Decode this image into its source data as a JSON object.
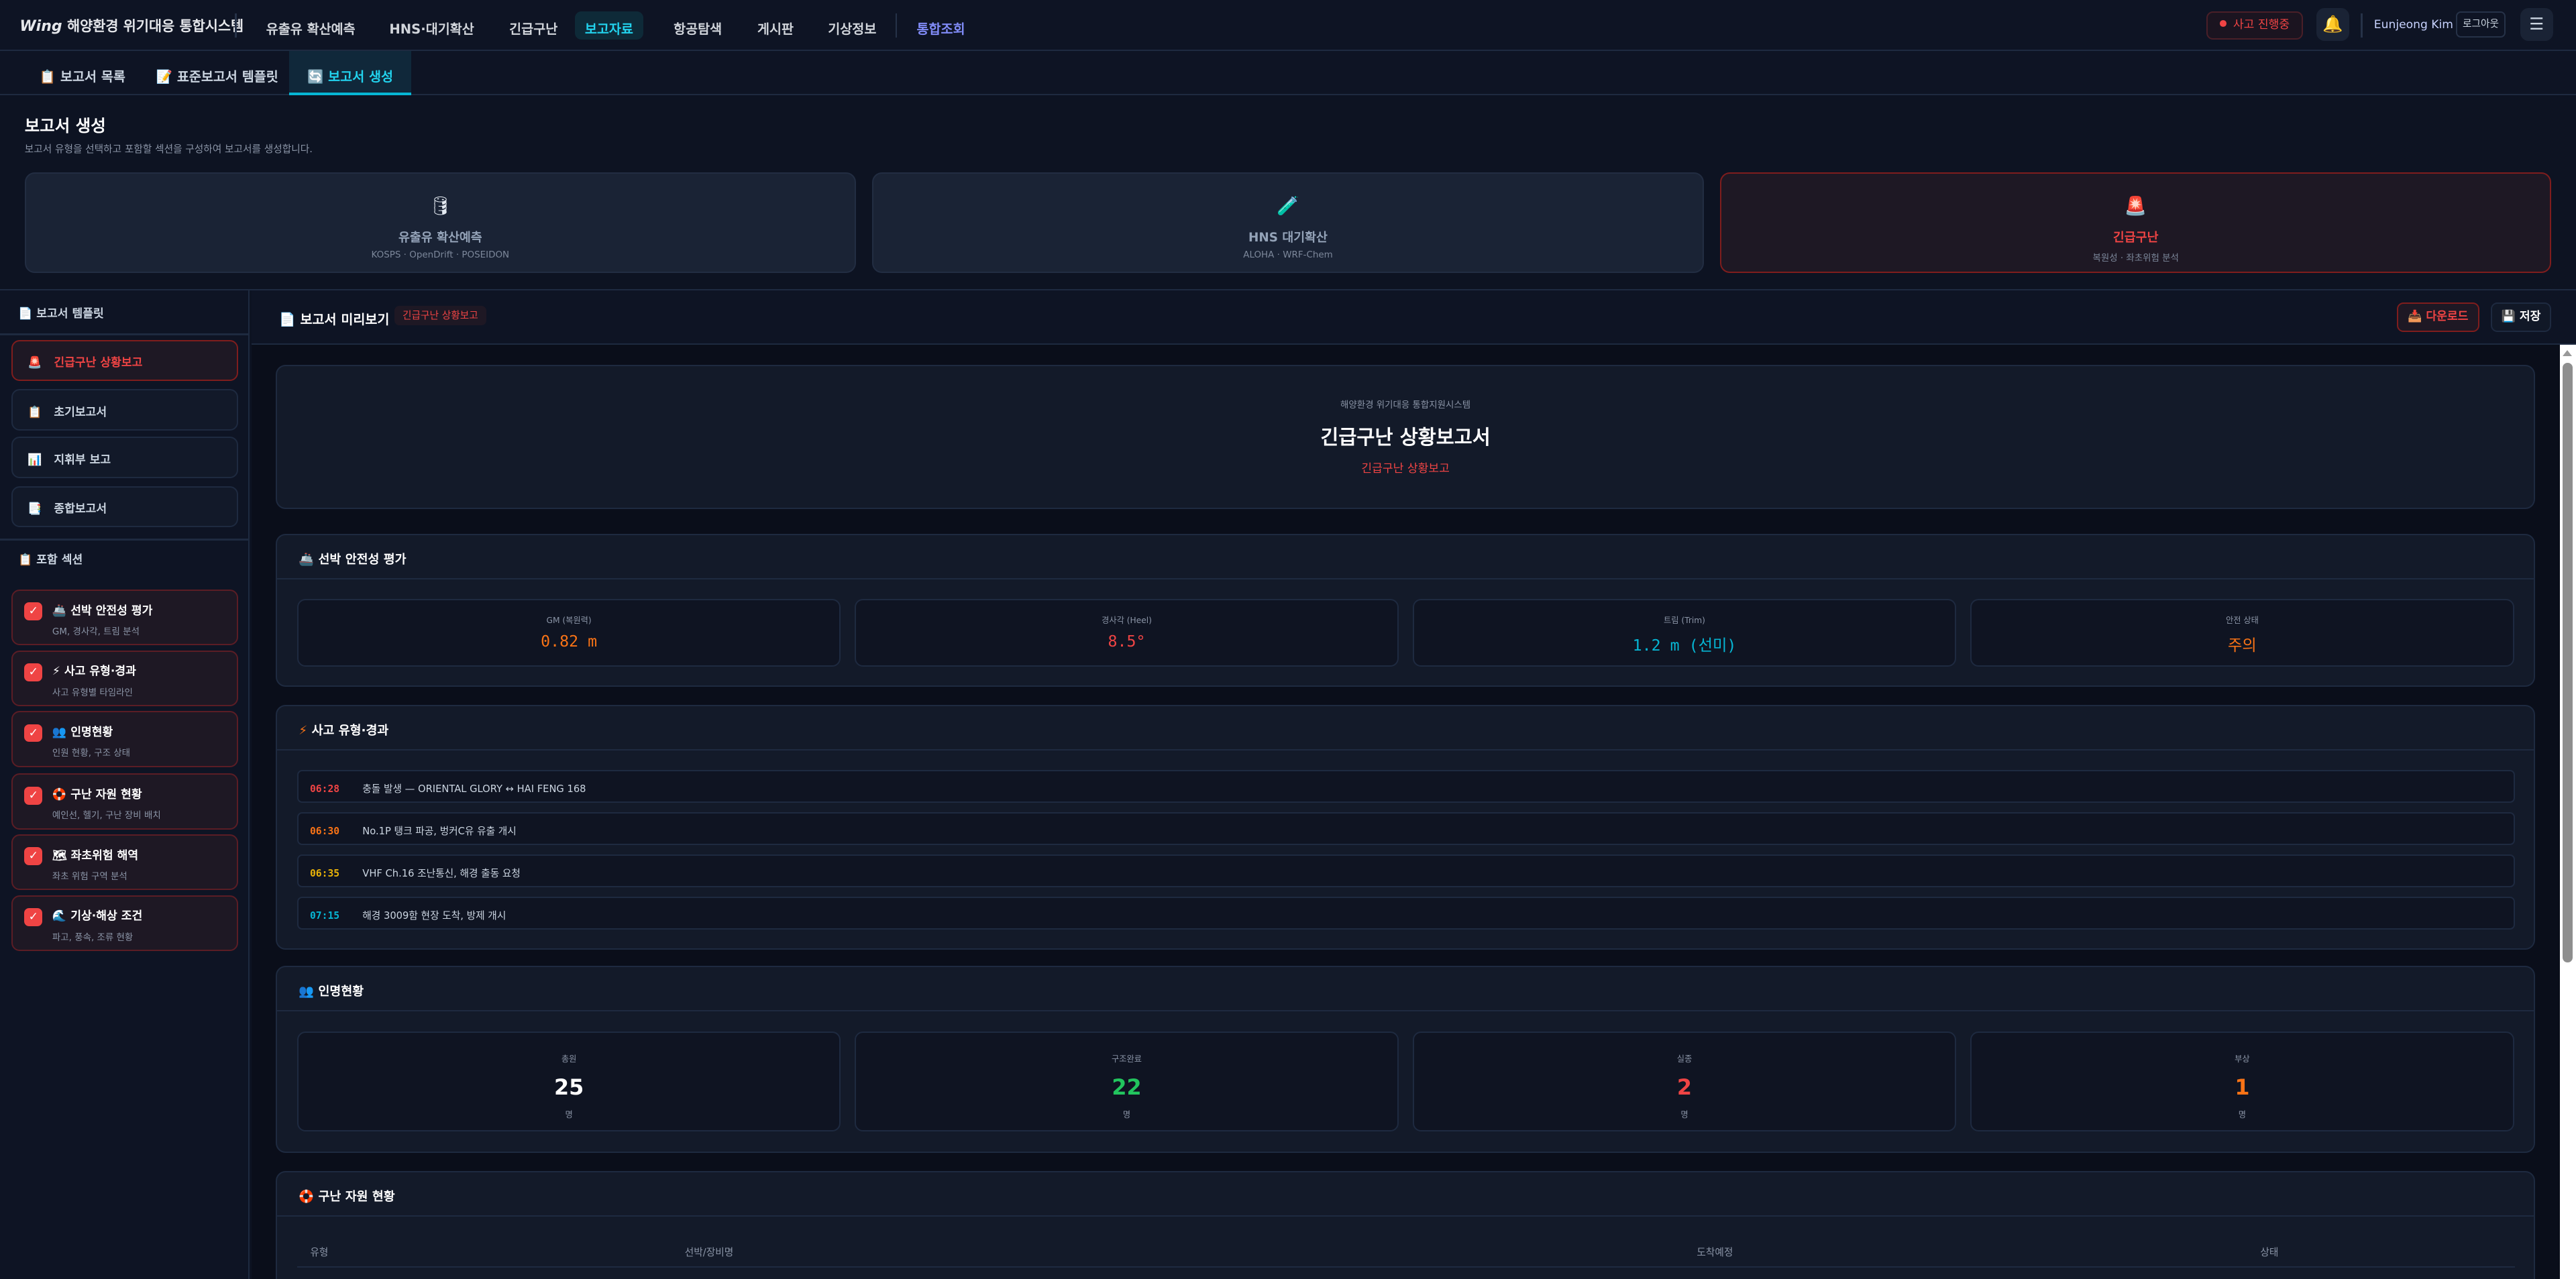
{
  "app": {
    "logo": "Wing",
    "title": "해양환경 위기대응 통합시스템"
  },
  "nav": [
    "유출유 확산예측",
    "HNS·대기확산",
    "긴급구난",
    "보고자료",
    "항공탐색",
    "게시판",
    "기상정보",
    "통합조회"
  ],
  "nav_active": "보고자료",
  "header_right": {
    "incident": "사고 진행중",
    "user": "Eunjeong Kim",
    "logout": "로그아웃"
  },
  "subtabs": [
    {
      "icon": "📋",
      "label": "보고서 목록"
    },
    {
      "icon": "📝",
      "label": "표준보고서 템플릿"
    },
    {
      "icon": "🔄",
      "label": "보고서 생성"
    }
  ],
  "subtab_active": "보고서 생성",
  "page": {
    "title": "보고서 생성",
    "description": "보고서 유형을 선택하고 포함할 섹션을 구성하여 보고서를 생성합니다."
  },
  "type_cards": [
    {
      "icon": "🛢",
      "name": "유출유 확산예측",
      "sub": "KOSPS · OpenDrift · POSEIDON"
    },
    {
      "icon": "🧪",
      "name": "HNS 대기확산",
      "sub": "ALOHA · WRF-Chem"
    },
    {
      "icon": "🚨",
      "name": "긴급구난",
      "sub": "복원성 · 좌초위험 분석",
      "selected": true
    }
  ],
  "sidebar": {
    "templates_title": "보고서 템플릿",
    "templates": [
      {
        "icon": "🚨",
        "label": "긴급구난 상황보고",
        "selected": true
      },
      {
        "icon": "📋",
        "label": "초기보고서"
      },
      {
        "icon": "📊",
        "label": "지휘부 보고"
      },
      {
        "icon": "📑",
        "label": "종합보고서"
      }
    ],
    "sections_title": "포함 섹션",
    "sections": [
      {
        "icon": "🚢",
        "title": "선박 안전성 평가",
        "sub": "GM, 경사각, 트림 분석",
        "checked": true
      },
      {
        "icon": "⚡",
        "title": "사고 유형·경과",
        "sub": "사고 유형별 타임라인",
        "checked": true
      },
      {
        "icon": "👥",
        "title": "인명현황",
        "sub": "인원 현황, 구조 상태",
        "checked": true
      },
      {
        "icon": "🛟",
        "title": "구난 자원 현황",
        "sub": "예인선, 헬기, 구난 장비 배치",
        "checked": true
      },
      {
        "icon": "🗺",
        "title": "좌초위험 해역",
        "sub": "좌초 위험 구역 분석",
        "checked": true
      },
      {
        "icon": "🌊",
        "title": "기상·해상 조건",
        "sub": "파고, 풍속, 조류 현황",
        "checked": true
      }
    ]
  },
  "preview": {
    "title": "보고서 미리보기",
    "badge": "긴급구난 상황보고",
    "download": "다운로드",
    "save": "저장",
    "doc": {
      "org": "해양환경 위기대응 통합지원시스템",
      "title": "긴급구난 상황보고서",
      "subtitle": "긴급구난 상황보고"
    },
    "stability": {
      "title": "선박 안전성 평가",
      "stats": [
        {
          "label": "GM (복원력)",
          "value": "0.82 m",
          "color": "#f97316"
        },
        {
          "label": "경사각 (Heel)",
          "value": "8.5°",
          "color": "#ef4444"
        },
        {
          "label": "트림 (Trim)",
          "value": "1.2 m (선미)",
          "color": "#06b6d4"
        },
        {
          "label": "안전 상태",
          "value": "주의",
          "color": "#f97316"
        }
      ]
    },
    "timeline": {
      "title": "사고 유형·경과",
      "events": [
        {
          "time": "06:28",
          "text": "충돌 발생 — ORIENTAL GLORY ↔ HAI FENG 168",
          "color": "#ef4444"
        },
        {
          "time": "06:30",
          "text": "No.1P 탱크 파공, 벙커C유 유출 개시",
          "color": "#f97316"
        },
        {
          "time": "06:35",
          "text": "VHF Ch.16 조난통신, 해경 출동 요청",
          "color": "#eab308"
        },
        {
          "time": "07:15",
          "text": "해경 3009함 현장 도착, 방제 개시",
          "color": "#06b6d4"
        }
      ]
    },
    "casualties": {
      "title": "인명현황",
      "stats": [
        {
          "label": "총원",
          "value": "25",
          "unit": "명",
          "color": "#ffffff"
        },
        {
          "label": "구조완료",
          "value": "22",
          "unit": "명",
          "color": "#22c55e"
        },
        {
          "label": "실종",
          "value": "2",
          "unit": "명",
          "color": "#ef4444"
        },
        {
          "label": "부상",
          "value": "1",
          "unit": "명",
          "color": "#f97316"
        }
      ]
    },
    "resources": {
      "title": "구난 자원 현황",
      "columns": [
        "유형",
        "선박/장비명",
        "도착예정",
        "상태"
      ]
    }
  }
}
